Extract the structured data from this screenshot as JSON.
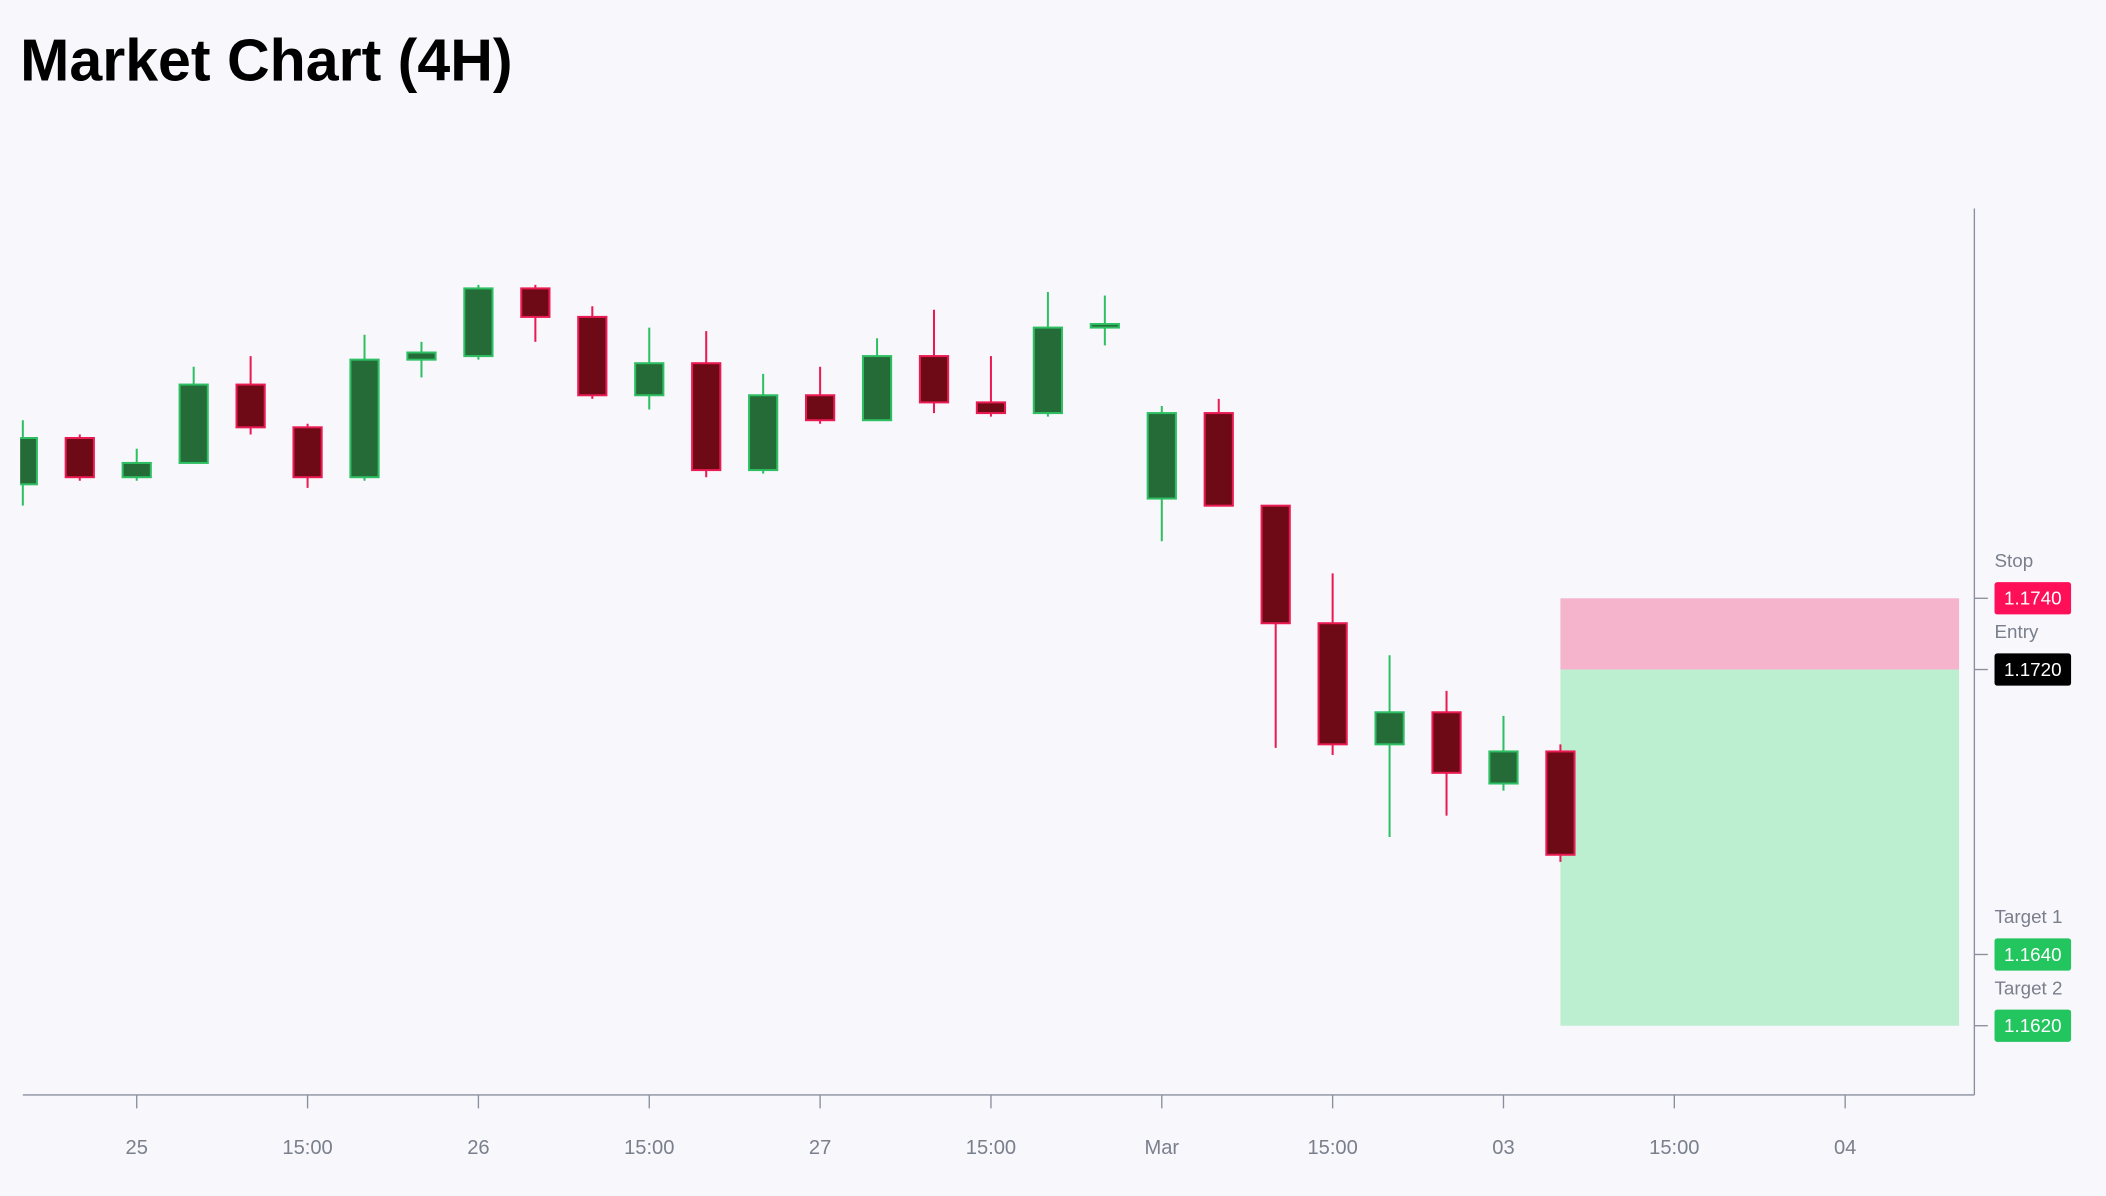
{
  "chart_data": {
    "type": "candlestick",
    "title": "Market Chart (4H)",
    "categories": [
      null,
      null,
      "25",
      null,
      null,
      "15:00",
      null,
      null,
      "26",
      null,
      null,
      "15:00",
      null,
      null,
      "27",
      null,
      null,
      "15:00",
      null,
      null,
      "Mar",
      null,
      null,
      "15:00",
      null,
      null,
      "03",
      null,
      null,
      "15:00",
      null,
      null,
      "04",
      null,
      null
    ],
    "open": [
      1.1772,
      1.1785,
      1.1774,
      1.1778,
      1.18,
      1.1788,
      1.1774,
      1.1807,
      1.1808,
      1.1827,
      1.1819,
      1.1797,
      1.1806,
      1.1776,
      1.1797,
      1.179,
      1.1808,
      1.1795,
      1.1792,
      1.1816,
      1.1768,
      1.1792,
      1.1766,
      1.1733,
      1.1699,
      1.1708,
      1.1688,
      1.1697,
      null,
      null,
      null,
      null,
      null,
      null,
      null
    ],
    "high": [
      1.179,
      1.1786,
      1.1782,
      1.1805,
      1.1808,
      1.1789,
      1.1814,
      1.1812,
      1.1828,
      1.1828,
      1.1822,
      1.1816,
      1.1815,
      1.1803,
      1.1805,
      1.1813,
      1.1821,
      1.1808,
      1.1826,
      1.1825,
      1.1794,
      1.1796,
      1.1766,
      1.1747,
      1.1724,
      1.1714,
      1.1707,
      1.1699,
      null,
      null,
      null,
      null,
      null,
      null,
      null
    ],
    "low": [
      1.1766,
      1.1773,
      1.1773,
      1.1778,
      1.1786,
      1.1771,
      1.1773,
      1.1802,
      1.1807,
      1.1812,
      1.1796,
      1.1793,
      1.1774,
      1.1775,
      1.1789,
      1.179,
      1.1792,
      1.1791,
      1.1791,
      1.1811,
      1.1756,
      1.1766,
      1.1698,
      1.1696,
      1.1673,
      1.1679,
      1.1686,
      1.1666,
      null,
      null,
      null,
      null,
      null,
      null,
      null
    ],
    "close": [
      1.1785,
      1.1774,
      1.1778,
      1.18,
      1.1788,
      1.1774,
      1.1807,
      1.1809,
      1.1827,
      1.1819,
      1.1797,
      1.1806,
      1.1776,
      1.1797,
      1.179,
      1.1808,
      1.1795,
      1.1792,
      1.1816,
      1.1817,
      1.1792,
      1.1766,
      1.1733,
      1.1699,
      1.1708,
      1.1691,
      1.1697,
      1.1668,
      null,
      null,
      null,
      null,
      null,
      null,
      null
    ],
    "up_color": "#2fbf63",
    "up_fill": "#246b38",
    "down_color": "#ea1a52",
    "down_fill": "#6e0a15",
    "ylim": [
      1.16,
      1.185
    ],
    "levels": [
      {
        "name": "Stop",
        "value": 1.174,
        "label": "1.1740",
        "color": "#ff0f57"
      },
      {
        "name": "Entry",
        "value": 1.172,
        "label": "1.1720",
        "color": "#000000"
      },
      {
        "name": "Target 1",
        "value": 1.164,
        "label": "1.1640",
        "color": "#22c55e"
      },
      {
        "name": "Target 2",
        "value": 1.162,
        "label": "1.1620",
        "color": "#22c55e"
      }
    ],
    "stop_zone_color": "#f5b3cc",
    "target_zone_color": "#bcefd0"
  }
}
